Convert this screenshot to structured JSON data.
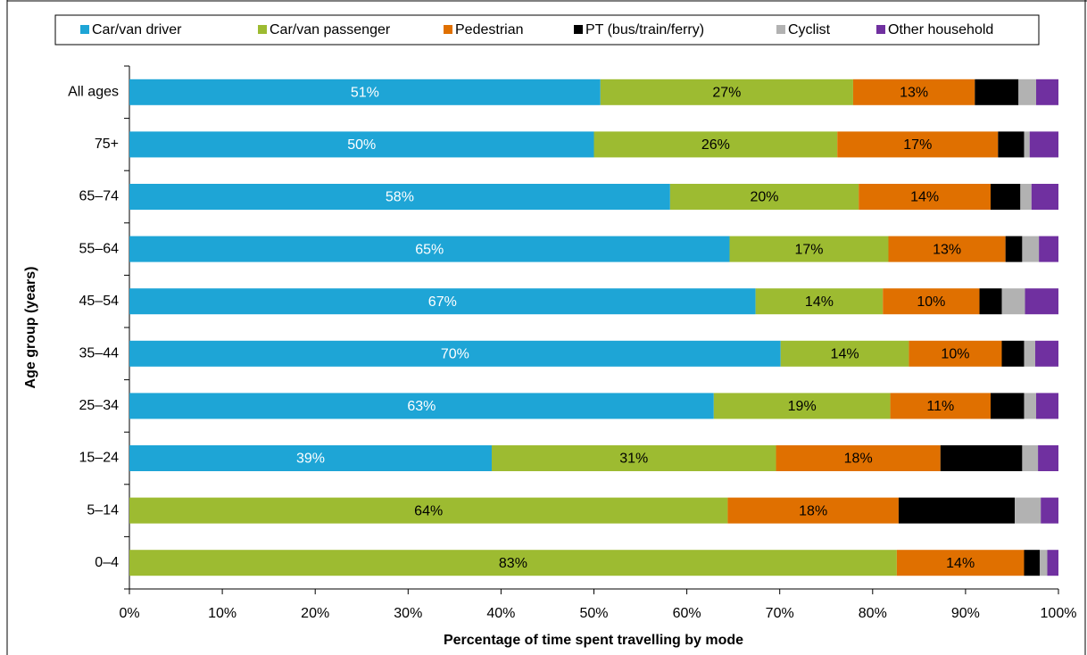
{
  "chart_data": {
    "type": "stacked_barh",
    "xlabel": "Percentage of time spent travelling by mode",
    "ylabel": "Age group (years)",
    "categories": [
      "All ages",
      "75+",
      "65–74",
      "55–64",
      "45–54",
      "35–44",
      "25–34",
      "15–24",
      "5–14",
      "0–4"
    ],
    "series": [
      {
        "name": "Car/van driver",
        "color": "#1ea5d6",
        "label_color": "#ffffff",
        "values": [
          50.7,
          50.0,
          58.2,
          64.6,
          67.4,
          70.1,
          62.9,
          39.0,
          0,
          0
        ],
        "value_labels": [
          "51%",
          "50%",
          "58%",
          "65%",
          "67%",
          "70%",
          "63%",
          "39%",
          null,
          null
        ]
      },
      {
        "name": "Car/van passenger",
        "color": "#9dbb31",
        "label_color": "#000000",
        "values": [
          27.2,
          26.2,
          20.3,
          17.1,
          13.7,
          13.8,
          19.0,
          30.6,
          64.4,
          82.6
        ],
        "value_labels": [
          "27%",
          "26%",
          "20%",
          "17%",
          "14%",
          "14%",
          "19%",
          "31%",
          "64%",
          "83%"
        ]
      },
      {
        "name": "Pedestrian",
        "color": "#e07000",
        "label_color": "#000000",
        "values": [
          13.1,
          17.3,
          14.2,
          12.6,
          10.4,
          10.0,
          10.8,
          17.7,
          18.4,
          13.7
        ],
        "value_labels": [
          "13%",
          "17%",
          "14%",
          "13%",
          "10%",
          "10%",
          "11%",
          "18%",
          "18%",
          "14%"
        ]
      },
      {
        "name": "PT (bus/train/ferry)",
        "color": "#000000",
        "label_color": "#ffffff",
        "values": [
          4.7,
          2.8,
          3.2,
          1.8,
          2.4,
          2.4,
          3.6,
          8.8,
          12.5,
          1.7
        ],
        "value_labels": [
          null,
          null,
          null,
          null,
          null,
          null,
          null,
          null,
          null,
          null
        ]
      },
      {
        "name": "Cyclist",
        "color": "#b2b2b2",
        "label_color": "#000000",
        "values": [
          1.9,
          0.6,
          1.2,
          1.8,
          2.5,
          1.2,
          1.3,
          1.7,
          2.8,
          0.8
        ],
        "value_labels": [
          null,
          null,
          null,
          null,
          null,
          null,
          null,
          null,
          null,
          null
        ]
      },
      {
        "name": "Other household",
        "color": "#7030a0",
        "label_color": "#ffffff",
        "values": [
          2.4,
          3.1,
          2.9,
          2.1,
          3.6,
          2.5,
          2.4,
          2.2,
          1.9,
          1.2
        ],
        "value_labels": [
          null,
          null,
          null,
          null,
          null,
          null,
          null,
          null,
          null,
          null
        ]
      }
    ],
    "xlim": [
      0,
      100
    ],
    "xticks": [
      {
        "value": 0,
        "label": "0%"
      },
      {
        "value": 10,
        "label": "10%"
      },
      {
        "value": 20,
        "label": "20%"
      },
      {
        "value": 30,
        "label": "30%"
      },
      {
        "value": 40,
        "label": "40%"
      },
      {
        "value": 50,
        "label": "50%"
      },
      {
        "value": 60,
        "label": "60%"
      },
      {
        "value": 70,
        "label": "70%"
      },
      {
        "value": 80,
        "label": "80%"
      },
      {
        "value": 90,
        "label": "90%"
      },
      {
        "value": 100,
        "label": "100%"
      }
    ],
    "legend": "top"
  }
}
